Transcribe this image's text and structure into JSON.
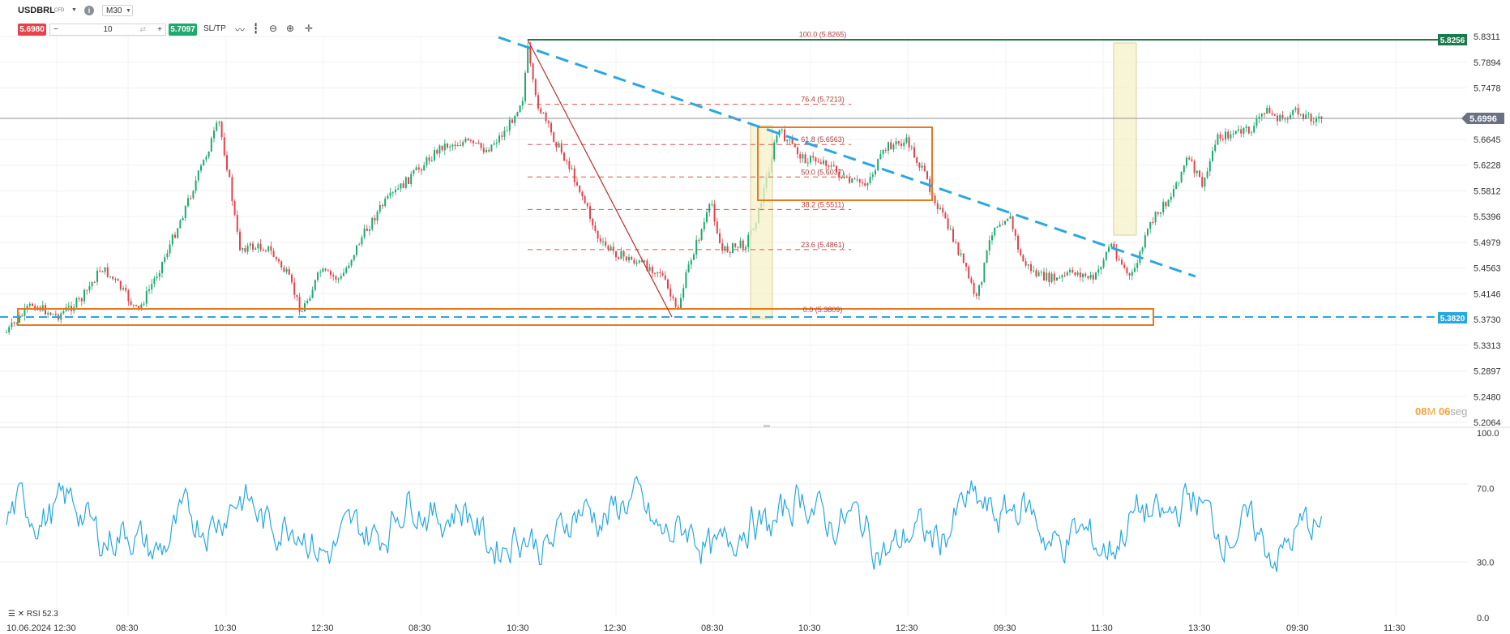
{
  "toolbar": {
    "symbol": "USDBRL",
    "symbol_type": "CFD",
    "info_icon": "info-icon",
    "timeframe": "M30",
    "sell_price": "5.6980",
    "minus": "−",
    "quantity": "10",
    "plus": "+",
    "buy_price": "5.7097",
    "sltp_label": "SL/TP",
    "tools": [
      "line-chart-icon",
      "candlestick-icon",
      "zoom-out-icon",
      "zoom-in-icon",
      "crosshair-icon"
    ]
  },
  "price_axis": {
    "ticks": [
      "5.8311",
      "5.7894",
      "5.7478",
      "5.6645",
      "5.6228",
      "5.5812",
      "5.5396",
      "5.4979",
      "5.4563",
      "5.4146",
      "5.3730",
      "5.3313",
      "5.2897",
      "5.2480",
      "5.2064"
    ],
    "current_price": "5.6996",
    "level_upper": "5.8256",
    "level_lower": "5.3820",
    "colors": {
      "current": "#6b7180",
      "upper": "#1b7a4b",
      "lower": "#29a8e0"
    }
  },
  "fibonacci": {
    "levels": [
      {
        "label": "100.0 (5.8265)",
        "value": 5.8265
      },
      {
        "label": "76.4 (5.7213)",
        "value": 5.7213
      },
      {
        "label": "61.8 (5.6563)",
        "value": 5.6563
      },
      {
        "label": "50.0 (5.6037)",
        "value": 5.6037
      },
      {
        "label": "38.2 (5.5511)",
        "value": 5.5511
      },
      {
        "label": "23.6 (5.4861)",
        "value": 5.4861
      },
      {
        "label": "0.0 (5.3809)",
        "value": 5.3809
      }
    ]
  },
  "rsi_axis": {
    "ticks": [
      "100.0",
      "70.0",
      "30.0",
      "0.0"
    ]
  },
  "rsi_label": "RSI 52.3",
  "time_axis": {
    "ticks": [
      "10.06.2024 12:30",
      "08:30",
      "10:30",
      "12:30",
      "08:30",
      "10:30",
      "12:30",
      "08:30",
      "10:30",
      "12:30",
      "09:30",
      "11:30",
      "13:30",
      "09:30",
      "11:30"
    ]
  },
  "timer": {
    "minutes": "08",
    "m_unit": "M",
    "seconds": "06",
    "s_unit": "seg"
  }
}
